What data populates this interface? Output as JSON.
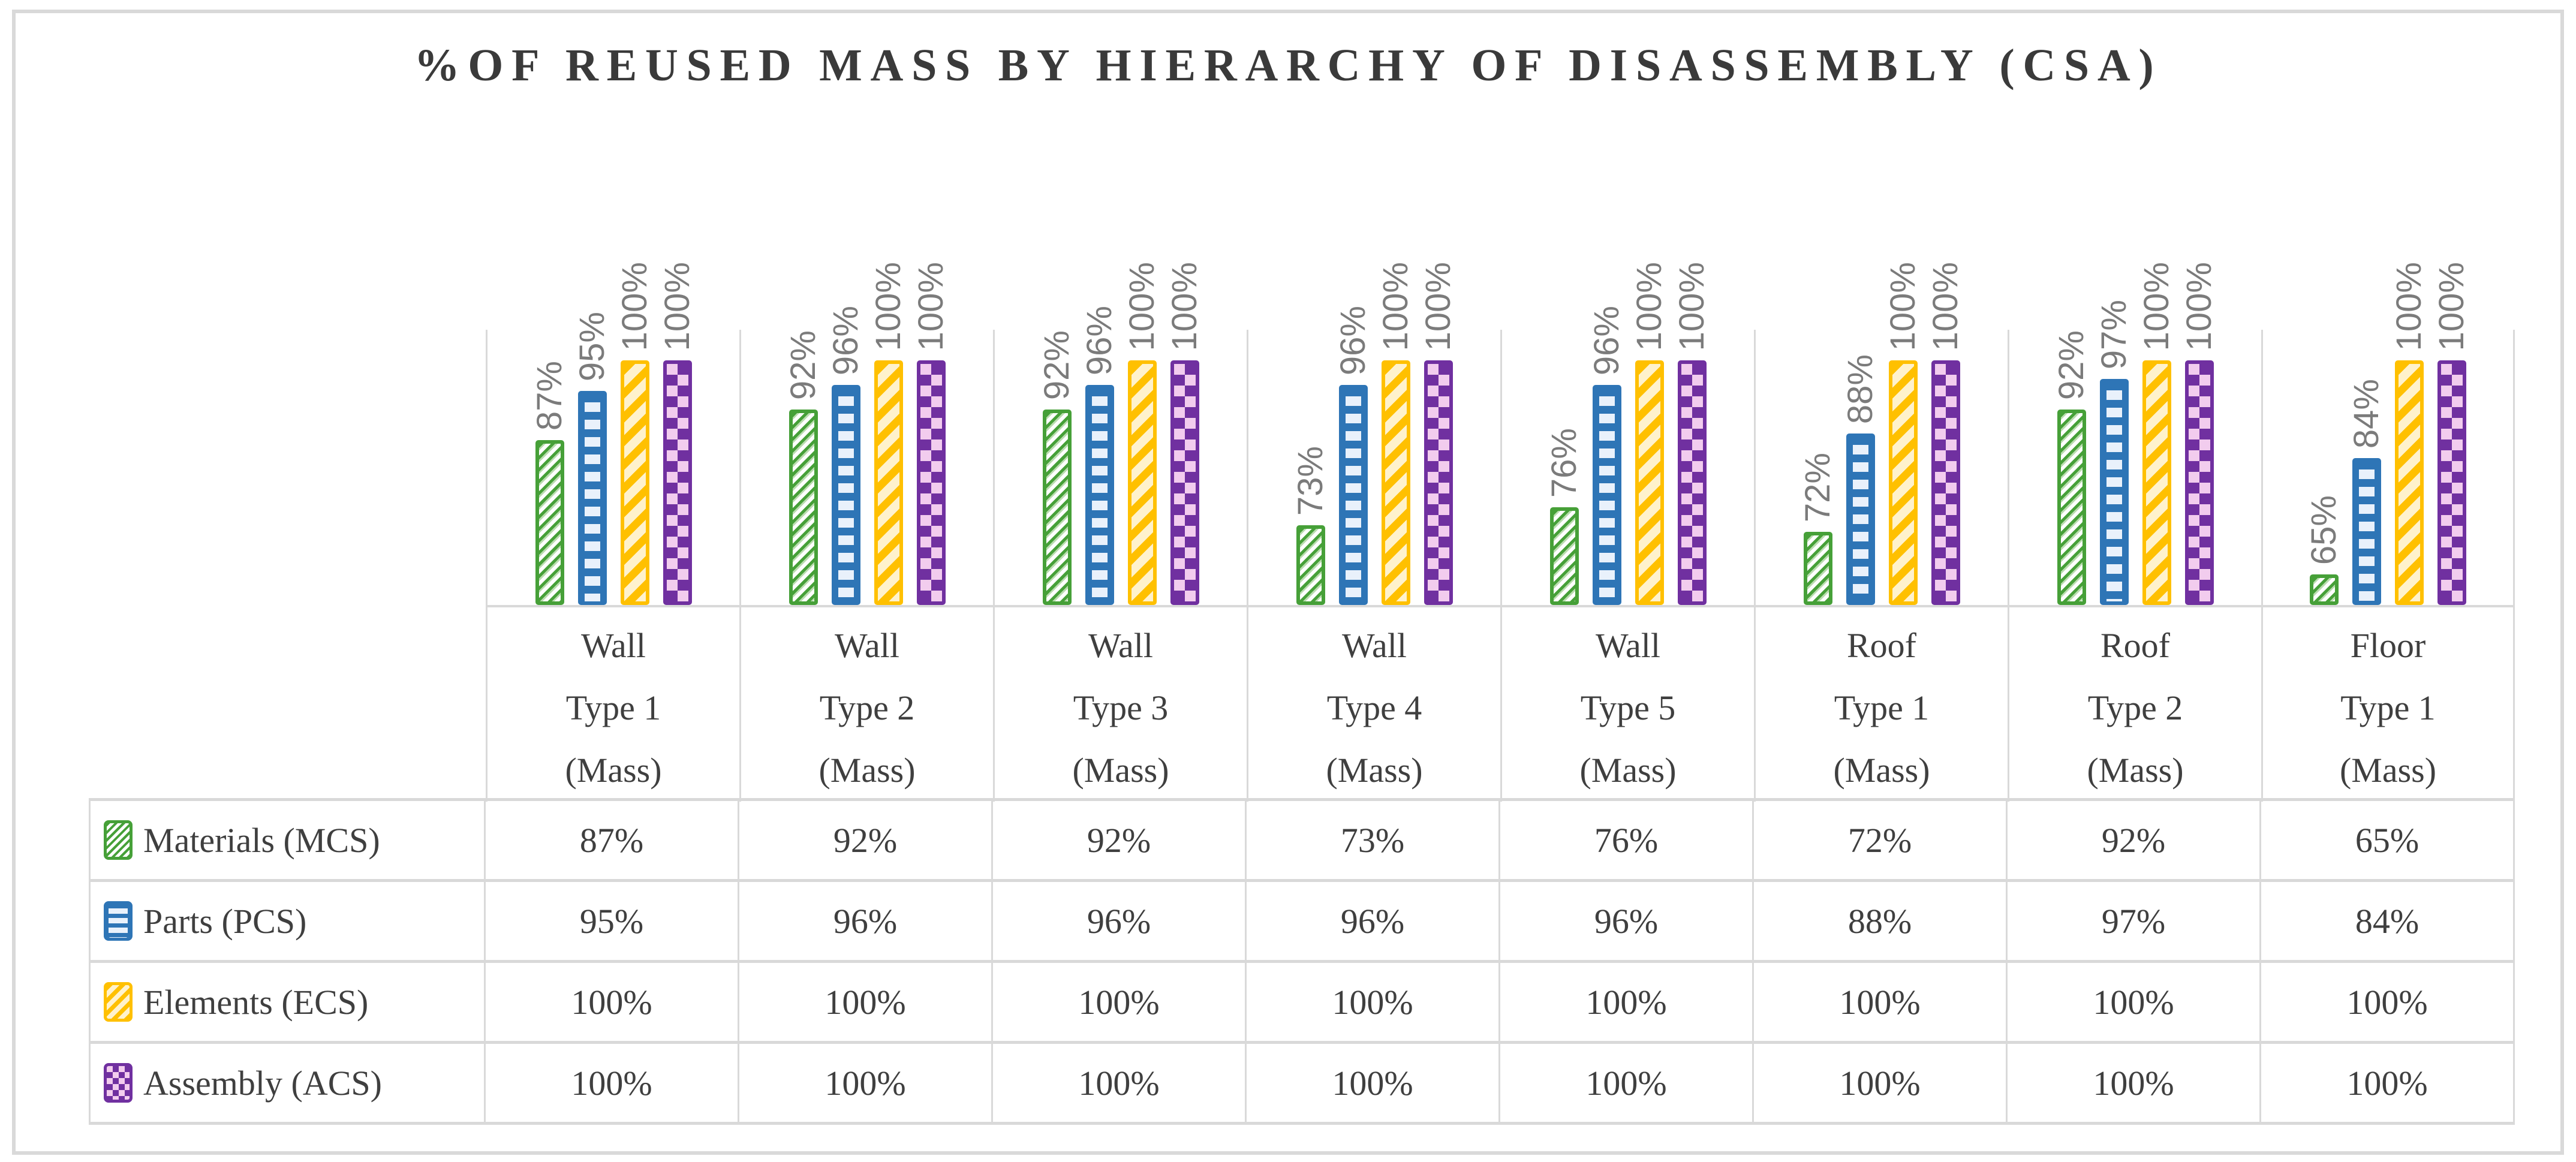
{
  "figure": {
    "background": "#FFFFFF",
    "border_color": "#D9D9D9",
    "text_color": "#3F3F3F"
  },
  "chart_data": {
    "type": "bar",
    "title": "%OF REUSED MASS BY HIERARCHY OF DISASSEMBLY (CSA)",
    "title_color": "#3A3A3A",
    "categories": [
      {
        "label": "Wall Type 1 (Mass)",
        "lines": [
          "Wall",
          "Type 1",
          "(Mass)"
        ]
      },
      {
        "label": "Wall Type 2 (Mass)",
        "lines": [
          "Wall",
          "Type 2",
          "(Mass)"
        ]
      },
      {
        "label": "Wall Type 3 (Mass)",
        "lines": [
          "Wall",
          "Type 3",
          "(Mass)"
        ]
      },
      {
        "label": "Wall Type 4 (Mass)",
        "lines": [
          "Wall",
          "Type 4",
          "(Mass)"
        ]
      },
      {
        "label": "Wall Type 5 (Mass)",
        "lines": [
          "Wall",
          "Type 5",
          "(Mass)"
        ]
      },
      {
        "label": "Roof Type 1 (Mass)",
        "lines": [
          "Roof",
          "Type 1",
          "(Mass)"
        ]
      },
      {
        "label": "Roof Type 2 (Mass)",
        "lines": [
          "Roof",
          "Type 2",
          "(Mass)"
        ]
      },
      {
        "label": "Floor Type 1 (Mass)",
        "lines": [
          "Floor",
          "Type 1",
          "(Mass)"
        ]
      }
    ],
    "series": [
      {
        "key": "materials",
        "name": "Materials (MCS)",
        "pattern": "thin-diagonal-hatch",
        "color": "#46A038",
        "fill_light": "#FFFFFF",
        "values": [
          87,
          92,
          92,
          73,
          76,
          72,
          92,
          65
        ]
      },
      {
        "key": "parts",
        "name": "Parts (PCS)",
        "pattern": "horizontal-dash",
        "color": "#2E75B6",
        "fill_light": "#E9F1FB",
        "values": [
          95,
          96,
          96,
          96,
          96,
          88,
          97,
          84
        ]
      },
      {
        "key": "elements",
        "name": "Elements (ECS)",
        "pattern": "wide-diagonal-stripe",
        "color": "#FFC000",
        "fill_light": "#FFF2CC",
        "values": [
          100,
          100,
          100,
          100,
          100,
          100,
          100,
          100
        ]
      },
      {
        "key": "assembly",
        "name": "Assembly (ACS)",
        "pattern": "checkerboard",
        "color": "#7030A0",
        "fill_light": "#F2CCEE",
        "values": [
          100,
          100,
          100,
          100,
          100,
          100,
          100,
          100
        ]
      }
    ],
    "value_format": "percent",
    "data_labels": {
      "visible": true,
      "rotated": true,
      "color": "#7B7B7B",
      "format": "0%"
    },
    "axis": {
      "y_min": 60,
      "y_max": 105,
      "y_axis_labels_visible": false,
      "gridlines": false
    },
    "grid_color": "#D9D9D9",
    "legend_position": "table-left-column"
  },
  "icons": {
    "materials": "green-diagonal-hatch-swatch-icon",
    "parts": "blue-horizontal-dash-swatch-icon",
    "elements": "gold-diagonal-stripe-swatch-icon",
    "assembly": "purple-checkerboard-swatch-icon"
  }
}
